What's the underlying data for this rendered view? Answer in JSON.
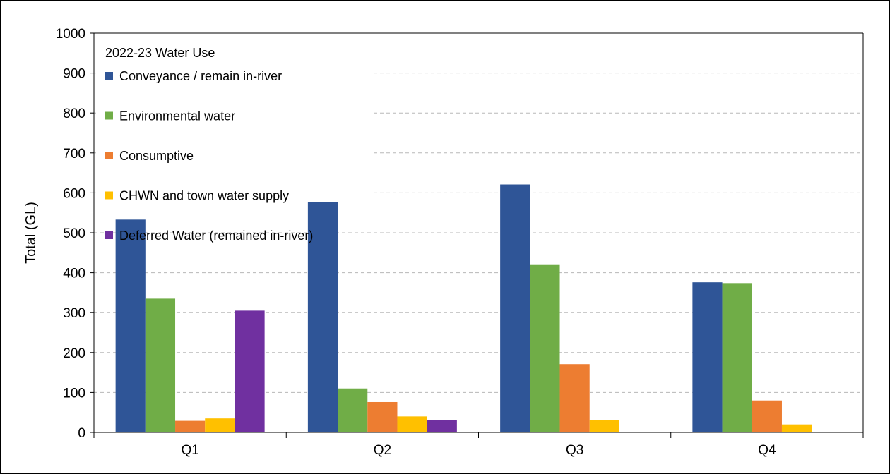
{
  "chart_data": {
    "type": "bar",
    "title": "",
    "xlabel": "",
    "ylabel": "Total (GL)",
    "ylim": [
      0,
      1000
    ],
    "ytick_step": 100,
    "grid": true,
    "legend_title": "2022-23 Water Use",
    "legend_position": "top-left",
    "categories": [
      "Q1",
      "Q2",
      "Q3",
      "Q4"
    ],
    "series": [
      {
        "name": "Conveyance / remain in-river",
        "color": "#2F5597",
        "values": [
          533,
          585,
          621,
          376
        ]
      },
      {
        "name": "Environmental water",
        "color": "#70AD47",
        "values": [
          335,
          110,
          421,
          374
        ]
      },
      {
        "name": "Consumptive",
        "color": "#ED7D31",
        "values": [
          29,
          76,
          171,
          80
        ]
      },
      {
        "name": "CHWN and town water supply",
        "color": "#FFC000",
        "values": [
          35,
          40,
          31,
          20
        ]
      },
      {
        "name": "Deferred Water (remained in-river)",
        "color": "#7030A0",
        "values": [
          305,
          31,
          0,
          0
        ]
      }
    ]
  }
}
